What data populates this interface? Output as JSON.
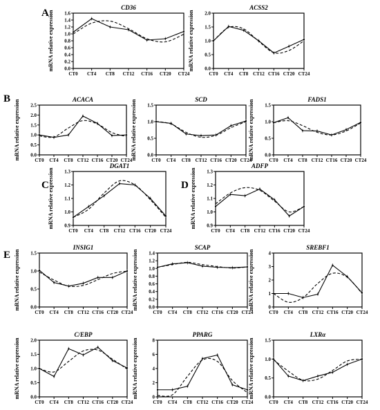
{
  "x_categories": [
    "CT0",
    "CT4",
    "CT8",
    "CT12",
    "CT16",
    "CT20",
    "CT24"
  ],
  "ylabel": "mRNA relative expression",
  "panel_letters": [
    "A",
    "B",
    "C",
    "D",
    "E"
  ],
  "chart_data": [
    {
      "type": "line",
      "gene": "CD36",
      "panel": "A",
      "ylim": [
        0,
        1.6
      ],
      "yticks": [
        0,
        0.2,
        0.4,
        0.6,
        0.8,
        1.0,
        1.2,
        1.4,
        1.6
      ],
      "ytick_labels": [
        "0.0",
        "0.2",
        "0.4",
        "0.6",
        "0.8",
        "1.0",
        "1.2",
        "1.4",
        "1.6"
      ],
      "observed": [
        1.05,
        1.44,
        1.2,
        1.12,
        0.82,
        0.86,
        1.07
      ],
      "fitted": [
        1.0,
        1.31,
        1.37,
        1.15,
        0.86,
        0.77,
        0.99
      ]
    },
    {
      "type": "line",
      "gene": "ACSS2",
      "ylim": [
        0,
        2.0
      ],
      "yticks": [
        0,
        0.5,
        1.0,
        1.5,
        2.0
      ],
      "ytick_labels": [
        "0.0",
        "0.5",
        "1.0",
        "1.5",
        "2.0"
      ],
      "observed": [
        1.0,
        1.52,
        1.38,
        1.0,
        0.56,
        0.8,
        1.05
      ],
      "fitted": [
        1.0,
        1.48,
        1.43,
        0.98,
        0.57,
        0.65,
        1.0
      ]
    },
    {
      "type": "line",
      "gene": "ACACA",
      "panel": "B",
      "ylim": [
        0,
        2.5
      ],
      "yticks": [
        0,
        0.5,
        1.0,
        1.5,
        2.0,
        2.5
      ],
      "ytick_labels": [
        "0.0",
        "0.5",
        "1.0",
        "1.5",
        "2.0",
        "2.5"
      ],
      "observed": [
        1.0,
        0.88,
        1.0,
        1.95,
        1.58,
        0.97,
        1.0
      ],
      "fitted": [
        0.95,
        0.9,
        1.35,
        1.72,
        1.55,
        1.12,
        0.92
      ]
    },
    {
      "type": "line",
      "gene": "SCD",
      "ylim": [
        0,
        1.5
      ],
      "yticks": [
        0,
        0.5,
        1.0,
        1.5
      ],
      "ytick_labels": [
        "0.0",
        "0.5",
        "1.0",
        "1.5"
      ],
      "observed": [
        1.0,
        0.95,
        0.63,
        0.58,
        0.6,
        0.88,
        1.02
      ],
      "fitted": [
        1.01,
        0.93,
        0.68,
        0.53,
        0.59,
        0.82,
        1.0
      ]
    },
    {
      "type": "line",
      "gene": "FADS1",
      "ylim": [
        0,
        1.5
      ],
      "yticks": [
        0,
        0.5,
        1.0,
        1.5
      ],
      "ytick_labels": [
        "0.0",
        "0.5",
        "1.0",
        "1.5"
      ],
      "observed": [
        0.97,
        1.12,
        0.73,
        0.72,
        0.6,
        0.76,
        0.98
      ],
      "fitted": [
        0.97,
        1.03,
        0.88,
        0.68,
        0.6,
        0.72,
        0.96
      ]
    },
    {
      "type": "line",
      "gene": "DGAT1",
      "panel": "C",
      "ylim": [
        0.9,
        1.3
      ],
      "yticks": [
        0.9,
        1.0,
        1.1,
        1.2,
        1.3
      ],
      "ytick_labels": [
        "0.9",
        "1.0",
        "1.1",
        "1.2",
        "1.3"
      ],
      "observed": [
        0.96,
        1.04,
        1.12,
        1.21,
        1.2,
        1.1,
        0.97
      ],
      "fitted": [
        0.96,
        1.02,
        1.14,
        1.23,
        1.2,
        1.09,
        0.96
      ]
    },
    {
      "type": "line",
      "gene": "ADFP",
      "panel": "D",
      "ylim": [
        0.9,
        1.3
      ],
      "yticks": [
        0.9,
        1.0,
        1.1,
        1.2,
        1.3
      ],
      "ytick_labels": [
        "0.9",
        "1.0",
        "1.1",
        "1.2",
        "1.3"
      ],
      "observed": [
        1.04,
        1.13,
        1.12,
        1.17,
        1.09,
        0.97,
        1.04
      ],
      "fitted": [
        1.06,
        1.14,
        1.18,
        1.16,
        1.08,
        1.0,
        1.04
      ]
    },
    {
      "type": "line",
      "gene": "INSIG1",
      "panel": "E",
      "ylim": [
        0,
        1.5
      ],
      "yticks": [
        0,
        0.5,
        1.0,
        1.5
      ],
      "ytick_labels": [
        "0.0",
        "0.5",
        "1.0",
        "1.5"
      ],
      "observed": [
        1.02,
        0.68,
        0.58,
        0.66,
        0.82,
        0.82,
        1.0
      ],
      "fitted": [
        0.97,
        0.75,
        0.58,
        0.6,
        0.76,
        0.93,
        1.0
      ]
    },
    {
      "type": "line",
      "gene": "SCAP",
      "ylim": [
        0,
        1.4
      ],
      "yticks": [
        0,
        0.2,
        0.4,
        0.6,
        0.8,
        1.0,
        1.2,
        1.4
      ],
      "ytick_labels": [
        "0.0",
        "0.2",
        "0.4",
        "0.6",
        "0.8",
        "1.0",
        "1.2",
        "1.4"
      ],
      "observed": [
        1.03,
        1.12,
        1.15,
        1.06,
        1.03,
        1.02,
        1.04
      ],
      "fitted": [
        1.03,
        1.1,
        1.16,
        1.1,
        1.05,
        1.01,
        1.04
      ]
    },
    {
      "type": "line",
      "gene": "SREBF1",
      "ylim": [
        0,
        4
      ],
      "yticks": [
        0,
        1,
        2,
        3,
        4
      ],
      "ytick_labels": [
        "0",
        "1",
        "2",
        "3",
        "4"
      ],
      "observed": [
        1.0,
        1.0,
        0.7,
        0.95,
        3.1,
        2.25,
        1.05
      ],
      "fitted": [
        1.0,
        0.35,
        0.7,
        1.75,
        2.5,
        2.2,
        1.0
      ]
    },
    {
      "type": "line",
      "gene": "C/EBP",
      "ylim": [
        0,
        2.0
      ],
      "yticks": [
        0,
        0.5,
        1.0,
        1.5,
        2.0
      ],
      "ytick_labels": [
        "0.0",
        "0.5",
        "1.0",
        "1.5",
        "2.0"
      ],
      "observed": [
        1.0,
        0.72,
        1.7,
        1.48,
        1.75,
        1.28,
        1.02
      ],
      "fitted": [
        1.0,
        0.88,
        1.25,
        1.62,
        1.65,
        1.33,
        0.98
      ]
    },
    {
      "type": "line",
      "gene": "PPARG",
      "ylim": [
        0,
        8
      ],
      "yticks": [
        0,
        2,
        4,
        6,
        8
      ],
      "ytick_labels": [
        "0",
        "2",
        "4",
        "6",
        "8"
      ],
      "observed": [
        1.0,
        1.0,
        1.5,
        5.4,
        5.9,
        1.7,
        1.0
      ],
      "fitted": [
        0.2,
        0.3,
        2.9,
        5.2,
        5.0,
        2.3,
        0.6
      ]
    },
    {
      "type": "line",
      "gene": "LXRα",
      "ylim": [
        0,
        1.5
      ],
      "yticks": [
        0,
        0.5,
        1.0,
        1.5
      ],
      "ytick_labels": [
        "0.0",
        "0.5",
        "1.0",
        "1.5"
      ],
      "observed": [
        1.0,
        0.55,
        0.43,
        0.55,
        0.65,
        0.86,
        1.0
      ],
      "fitted": [
        0.98,
        0.68,
        0.44,
        0.47,
        0.7,
        0.95,
        1.0
      ]
    }
  ]
}
